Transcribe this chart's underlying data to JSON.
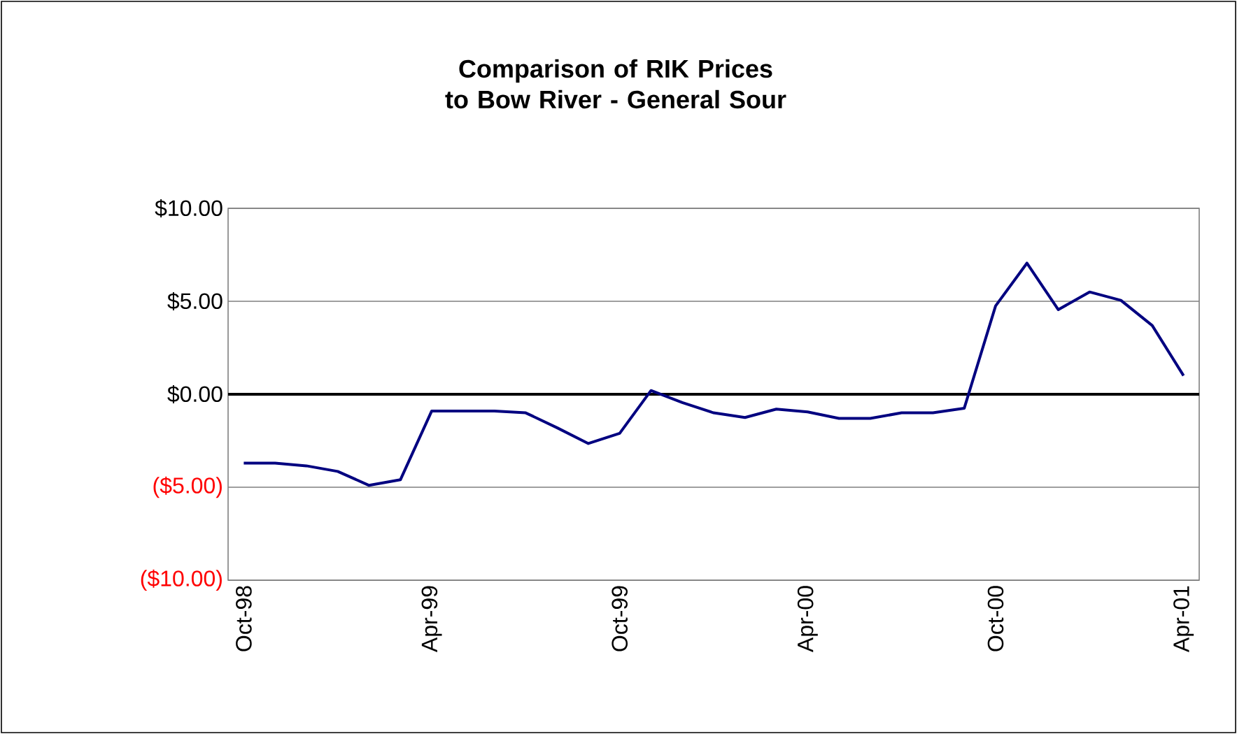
{
  "chart_data": {
    "type": "line",
    "title": "Comparison of RIK Prices to Bow River - General Sour",
    "categories": [
      "Oct-98",
      null,
      null,
      null,
      null,
      null,
      "Apr-99",
      null,
      null,
      null,
      null,
      null,
      "Oct-99",
      null,
      null,
      null,
      null,
      null,
      "Apr-00",
      null,
      null,
      null,
      null,
      null,
      "Oct-00",
      null,
      null,
      null,
      null,
      null,
      "Apr-01"
    ],
    "values": [
      -3.7,
      -3.7,
      -3.85,
      -4.15,
      -4.9,
      -4.6,
      -0.9,
      -0.9,
      -0.9,
      -1.0,
      -1.8,
      -2.65,
      -2.1,
      0.2,
      -0.45,
      -1.0,
      -1.25,
      -0.8,
      -0.95,
      -1.3,
      -1.3,
      -1.0,
      -1.0,
      -0.75,
      4.75,
      7.05,
      4.55,
      5.5,
      5.05,
      3.7,
      1.0
    ],
    "color": "#000080",
    "ylim": [
      -10,
      10
    ],
    "yticks": [
      {
        "value": 10,
        "label": "$10.00"
      },
      {
        "value": 5,
        "label": "$5.00"
      },
      {
        "value": 0,
        "label": "$0.00"
      },
      {
        "value": -5,
        "label": "($5.00)"
      },
      {
        "value": -10,
        "label": "($10.00)"
      }
    ],
    "grid": "y",
    "ref_lines": [
      {
        "axis": "y",
        "value": 0,
        "color": "#000000"
      }
    ]
  }
}
